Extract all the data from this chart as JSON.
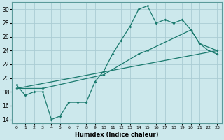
{
  "xlabel": "Humidex (Indice chaleur)",
  "bg_color": "#cce8ec",
  "grid_color": "#aaccd4",
  "line_color": "#1a7a6e",
  "xlim": [
    -0.5,
    23.5
  ],
  "ylim": [
    13.5,
    31
  ],
  "xticks": [
    0,
    1,
    2,
    3,
    4,
    5,
    6,
    7,
    8,
    9,
    10,
    11,
    12,
    13,
    14,
    15,
    16,
    17,
    18,
    19,
    20,
    21,
    22,
    23
  ],
  "yticks": [
    14,
    16,
    18,
    20,
    22,
    24,
    26,
    28,
    30
  ],
  "line1_x": [
    0,
    1,
    2,
    3,
    4,
    5,
    6,
    7,
    8,
    9,
    10,
    11,
    12,
    13,
    14,
    15,
    16,
    17,
    18,
    19,
    20,
    21,
    22,
    23
  ],
  "line1_y": [
    19.0,
    17.5,
    18.0,
    18.0,
    14.0,
    14.5,
    16.5,
    16.5,
    16.5,
    19.5,
    21.0,
    23.5,
    25.5,
    27.5,
    30.0,
    30.5,
    28.0,
    28.5,
    28.0,
    28.5,
    27.0,
    25.0,
    24.0,
    23.5
  ],
  "line2_x": [
    0,
    3,
    10,
    14,
    15,
    20,
    21,
    23
  ],
  "line2_y": [
    18.5,
    18.5,
    20.5,
    23.5,
    24.0,
    27.0,
    25.0,
    24.0
  ],
  "line3_x": [
    0,
    23
  ],
  "line3_y": [
    18.5,
    24.0
  ]
}
